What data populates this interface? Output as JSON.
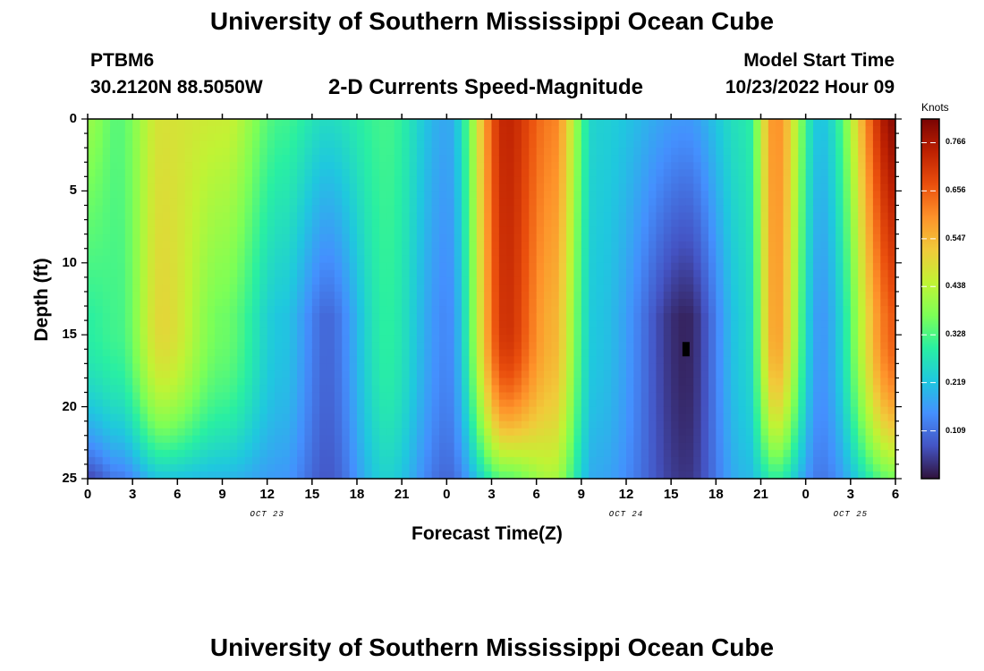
{
  "header": {
    "title_top": "University of Southern Mississippi Ocean Cube",
    "station": "PTBM6",
    "coords": "30.2120N  88.5050W",
    "plot_title": "2-D Currents Speed-Magnitude",
    "model_label": "Model Start Time",
    "model_time": "10/23/2022 Hour 09",
    "title_bottom": "University of Southern Mississippi Ocean Cube"
  },
  "chart_data": {
    "type": "heatmap",
    "title": "2-D Currents Speed-Magnitude",
    "xlabel": "Forecast Time(Z)",
    "ylabel": "Depth (ft)",
    "x_ticks": [
      "0",
      "3",
      "6",
      "9",
      "12",
      "15",
      "18",
      "21",
      "0",
      "3",
      "6",
      "9",
      "12",
      "15",
      "18",
      "21",
      "0",
      "3",
      "6"
    ],
    "x_tick_hours": [
      0,
      3,
      6,
      9,
      12,
      15,
      18,
      21,
      24,
      27,
      30,
      33,
      36,
      39,
      42,
      45,
      48,
      51,
      54
    ],
    "x_range_hours": [
      0,
      54
    ],
    "date_labels": [
      {
        "text": "OCT 23",
        "hour": 12
      },
      {
        "text": "OCT 24",
        "hour": 36
      },
      {
        "text": "OCT 25",
        "hour": 51
      }
    ],
    "y_ticks": [
      "0",
      "5",
      "10",
      "15",
      "20",
      "25"
    ],
    "y_tick_values": [
      0,
      5,
      10,
      15,
      20,
      25
    ],
    "ylim": [
      0,
      25
    ],
    "y_inverted": true,
    "colorbar": {
      "label": "Knots",
      "min": 0.0,
      "max": 0.82,
      "ticks": [
        "0.766",
        "0.656",
        "0.547",
        "0.438",
        "0.328",
        "0.219",
        "0.109"
      ],
      "tick_values": [
        0.766,
        0.656,
        0.547,
        0.438,
        0.328,
        0.219,
        0.109
      ],
      "colors": [
        "#30123b",
        "#4454c4",
        "#4490fe",
        "#1fc8de",
        "#29efa2",
        "#7dff56",
        "#c1f334",
        "#f1ca3a",
        "#fe922a",
        "#ea4f0d",
        "#be2102",
        "#7a0403"
      ]
    },
    "marker": {
      "hour": 40,
      "depth": 16
    },
    "profiles_knots": [
      {
        "hour": 0,
        "surface": 0.4,
        "mid": 0.3,
        "bottom": 0.06
      },
      {
        "hour": 2,
        "surface": 0.34,
        "mid": 0.32,
        "bottom": 0.12
      },
      {
        "hour": 5,
        "surface": 0.48,
        "mid": 0.5,
        "bottom": 0.22
      },
      {
        "hour": 9,
        "surface": 0.46,
        "mid": 0.36,
        "bottom": 0.2
      },
      {
        "hour": 13,
        "surface": 0.32,
        "mid": 0.22,
        "bottom": 0.16
      },
      {
        "hour": 16,
        "surface": 0.26,
        "mid": 0.1,
        "bottom": 0.08
      },
      {
        "hour": 20,
        "surface": 0.32,
        "mid": 0.3,
        "bottom": 0.24
      },
      {
        "hour": 24,
        "surface": 0.18,
        "mid": 0.14,
        "bottom": 0.1
      },
      {
        "hour": 28,
        "surface": 0.74,
        "mid": 0.72,
        "bottom": 0.34
      },
      {
        "hour": 31,
        "surface": 0.62,
        "mid": 0.56,
        "bottom": 0.42
      },
      {
        "hour": 34,
        "surface": 0.24,
        "mid": 0.22,
        "bottom": 0.18
      },
      {
        "hour": 40,
        "surface": 0.16,
        "mid": 0.02,
        "bottom": 0.04
      },
      {
        "hour": 44,
        "surface": 0.28,
        "mid": 0.24,
        "bottom": 0.2
      },
      {
        "hour": 46,
        "surface": 0.6,
        "mid": 0.58,
        "bottom": 0.3
      },
      {
        "hour": 49,
        "surface": 0.22,
        "mid": 0.16,
        "bottom": 0.12
      },
      {
        "hour": 54,
        "surface": 0.8,
        "mid": 0.66,
        "bottom": 0.36
      }
    ]
  }
}
